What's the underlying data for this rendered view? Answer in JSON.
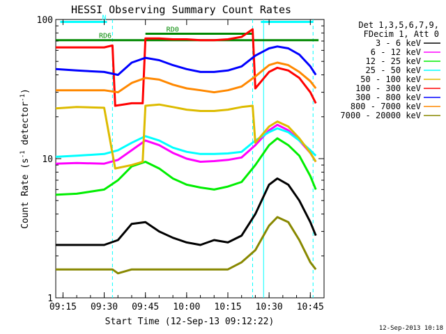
{
  "chart_data": {
    "type": "line",
    "title": "HESSI Observing Summary Count Rates",
    "xlabel": "Start Time (12-Sep-13 09:12:22)",
    "ylabel": "Count Rate (s",
    "ylabel_sup": "-1",
    "ylabel_tail": " detector",
    "ylabel_end": ")",
    "yscale": "log",
    "ylim": [
      1,
      100
    ],
    "xlim": [
      "09:12:22",
      "10:50:00"
    ],
    "y_ticks": [
      {
        "value": 1,
        "label": "1"
      },
      {
        "value": 10,
        "label": "10"
      },
      {
        "value": 100,
        "label": "100"
      }
    ],
    "x_ticks": [
      {
        "t": "09:15",
        "label": "09:15"
      },
      {
        "t": "09:30",
        "label": "09:30"
      },
      {
        "t": "09:45",
        "label": "09:45"
      },
      {
        "t": "10:00",
        "label": "10:00"
      },
      {
        "t": "10:15",
        "label": "10:15"
      },
      {
        "t": "10:30",
        "label": "10:30"
      },
      {
        "t": "10:45",
        "label": "10:45"
      }
    ],
    "legend": {
      "placement": "right",
      "header": [
        "Det 1,3,5,6,7,9,",
        "FDecim 1, Att 0"
      ]
    },
    "series": [
      {
        "name": "3 - 6 keV",
        "color": "#000000",
        "points": [
          [
            "09:12",
            "2.4"
          ],
          [
            "09:20",
            "2.4"
          ],
          [
            "09:30",
            "2.4"
          ],
          [
            "09:35",
            "2.6"
          ],
          [
            "09:40",
            "3.4"
          ],
          [
            "09:45",
            "3.5"
          ],
          [
            "09:50",
            "3.0"
          ],
          [
            "09:55",
            "2.7"
          ],
          [
            "10:00",
            "2.5"
          ],
          [
            "10:05",
            "2.4"
          ],
          [
            "10:10",
            "2.6"
          ],
          [
            "10:15",
            "2.5"
          ],
          [
            "10:20",
            "2.8"
          ],
          [
            "10:25",
            "4.0"
          ],
          [
            "10:30",
            "6.5"
          ],
          [
            "10:33",
            "7.2"
          ],
          [
            "10:37",
            "6.5"
          ],
          [
            "10:41",
            "5.0"
          ],
          [
            "10:45",
            "3.5"
          ],
          [
            "10:47",
            "2.8"
          ]
        ]
      },
      {
        "name": "6 - 12 keV",
        "color": "#ff00ff",
        "points": [
          [
            "09:12",
            "9.2"
          ],
          [
            "09:20",
            "9.3"
          ],
          [
            "09:30",
            "9.2"
          ],
          [
            "09:35",
            "9.8"
          ],
          [
            "09:40",
            "11.5"
          ],
          [
            "09:45",
            "13.5"
          ],
          [
            "09:50",
            "12.5"
          ],
          [
            "09:55",
            "11.0"
          ],
          [
            "10:00",
            "10.0"
          ],
          [
            "10:05",
            "9.5"
          ],
          [
            "10:10",
            "9.6"
          ],
          [
            "10:15",
            "9.8"
          ],
          [
            "10:20",
            "10.2"
          ],
          [
            "10:25",
            "12.5"
          ],
          [
            "10:30",
            "16.0"
          ],
          [
            "10:33",
            "17.5"
          ],
          [
            "10:37",
            "16.0"
          ],
          [
            "10:41",
            "13.5"
          ],
          [
            "10:45",
            "11.0"
          ],
          [
            "10:47",
            "9.5"
          ]
        ]
      },
      {
        "name": "12 - 25 keV",
        "color": "#00ee00",
        "points": [
          [
            "09:12",
            "5.5"
          ],
          [
            "09:20",
            "5.6"
          ],
          [
            "09:30",
            "6.0"
          ],
          [
            "09:35",
            "7.0"
          ],
          [
            "09:40",
            "8.8"
          ],
          [
            "09:45",
            "9.5"
          ],
          [
            "09:50",
            "8.5"
          ],
          [
            "09:55",
            "7.2"
          ],
          [
            "10:00",
            "6.5"
          ],
          [
            "10:05",
            "6.2"
          ],
          [
            "10:10",
            "6.0"
          ],
          [
            "10:15",
            "6.3"
          ],
          [
            "10:20",
            "6.8"
          ],
          [
            "10:25",
            "9.0"
          ],
          [
            "10:30",
            "12.5"
          ],
          [
            "10:33",
            "14.0"
          ],
          [
            "10:37",
            "12.5"
          ],
          [
            "10:41",
            "10.5"
          ],
          [
            "10:45",
            "7.5"
          ],
          [
            "10:47",
            "6.0"
          ]
        ]
      },
      {
        "name": "25 - 50 keV",
        "color": "#00ffff",
        "points": [
          [
            "09:12",
            "10.3"
          ],
          [
            "09:20",
            "10.5"
          ],
          [
            "09:30",
            "10.8"
          ],
          [
            "09:35",
            "11.5"
          ],
          [
            "09:40",
            "13.0"
          ],
          [
            "09:45",
            "14.5"
          ],
          [
            "09:50",
            "13.5"
          ],
          [
            "09:55",
            "12.0"
          ],
          [
            "10:00",
            "11.2"
          ],
          [
            "10:05",
            "10.8"
          ],
          [
            "10:10",
            "10.8"
          ],
          [
            "10:15",
            "10.9"
          ],
          [
            "10:20",
            "11.2"
          ],
          [
            "10:25",
            "13.5"
          ],
          [
            "10:30",
            "15.5"
          ],
          [
            "10:33",
            "16.5"
          ],
          [
            "10:37",
            "15.5"
          ],
          [
            "10:41",
            "13.5"
          ],
          [
            "10:45",
            "11.5"
          ],
          [
            "10:47",
            "10.5"
          ]
        ]
      },
      {
        "name": "50 - 100 keV",
        "color": "#ddbb00",
        "points": [
          [
            "09:12",
            "23.0"
          ],
          [
            "09:20",
            "23.5"
          ],
          [
            "09:30",
            "23.2"
          ],
          [
            "09:34",
            "8.5"
          ],
          [
            "09:40",
            "9.0"
          ],
          [
            "09:44",
            "9.5"
          ],
          [
            "09:45",
            "24.0"
          ],
          [
            "09:50",
            "24.5"
          ],
          [
            "09:55",
            "23.5"
          ],
          [
            "10:00",
            "22.5"
          ],
          [
            "10:05",
            "22.0"
          ],
          [
            "10:10",
            "22.0"
          ],
          [
            "10:15",
            "22.5"
          ],
          [
            "10:20",
            "23.5"
          ],
          [
            "10:24",
            "24.0"
          ],
          [
            "10:25",
            "13.0"
          ],
          [
            "10:30",
            "17.0"
          ],
          [
            "10:33",
            "18.5"
          ],
          [
            "10:37",
            "17.0"
          ],
          [
            "10:41",
            "14.0"
          ],
          [
            "10:45",
            "11.0"
          ],
          [
            "10:47",
            "9.5"
          ]
        ]
      },
      {
        "name": "100 - 300 keV",
        "color": "#ff0000",
        "points": [
          [
            "09:12",
            "63"
          ],
          [
            "09:20",
            "63"
          ],
          [
            "09:30",
            "63"
          ],
          [
            "09:33",
            "65"
          ],
          [
            "09:34",
            "24"
          ],
          [
            "09:40",
            "25"
          ],
          [
            "09:44",
            "25"
          ],
          [
            "09:45",
            "73"
          ],
          [
            "09:50",
            "73"
          ],
          [
            "09:55",
            "72"
          ],
          [
            "10:00",
            "72"
          ],
          [
            "10:05",
            "71"
          ],
          [
            "10:10",
            "71"
          ],
          [
            "10:15",
            "72"
          ],
          [
            "10:20",
            "75"
          ],
          [
            "10:24",
            "85"
          ],
          [
            "10:25",
            "32"
          ],
          [
            "10:30",
            "42"
          ],
          [
            "10:33",
            "45"
          ],
          [
            "10:37",
            "43"
          ],
          [
            "10:41",
            "38"
          ],
          [
            "10:45",
            "30"
          ],
          [
            "10:47",
            "25"
          ]
        ]
      },
      {
        "name": "300 - 800 keV",
        "color": "#0000ff",
        "points": [
          [
            "09:12",
            "44"
          ],
          [
            "09:20",
            "43"
          ],
          [
            "09:30",
            "42"
          ],
          [
            "09:35",
            "40"
          ],
          [
            "09:40",
            "49"
          ],
          [
            "09:45",
            "53"
          ],
          [
            "09:50",
            "51"
          ],
          [
            "09:55",
            "47"
          ],
          [
            "10:00",
            "44"
          ],
          [
            "10:05",
            "42"
          ],
          [
            "10:10",
            "42"
          ],
          [
            "10:15",
            "43"
          ],
          [
            "10:20",
            "46"
          ],
          [
            "10:25",
            "55"
          ],
          [
            "10:30",
            "62"
          ],
          [
            "10:33",
            "64"
          ],
          [
            "10:37",
            "62"
          ],
          [
            "10:41",
            "56"
          ],
          [
            "10:45",
            "46"
          ],
          [
            "10:47",
            "40"
          ]
        ]
      },
      {
        "name": "800 - 7000 keV",
        "color": "#ff8800",
        "points": [
          [
            "09:12",
            "31"
          ],
          [
            "09:20",
            "31"
          ],
          [
            "09:30",
            "31"
          ],
          [
            "09:35",
            "30"
          ],
          [
            "09:40",
            "35"
          ],
          [
            "09:45",
            "38"
          ],
          [
            "09:50",
            "37"
          ],
          [
            "09:55",
            "34"
          ],
          [
            "10:00",
            "32"
          ],
          [
            "10:05",
            "31"
          ],
          [
            "10:10",
            "30"
          ],
          [
            "10:15",
            "31"
          ],
          [
            "10:20",
            "33"
          ],
          [
            "10:25",
            "39"
          ],
          [
            "10:30",
            "47"
          ],
          [
            "10:33",
            "49"
          ],
          [
            "10:37",
            "47"
          ],
          [
            "10:41",
            "42"
          ],
          [
            "10:45",
            "36"
          ],
          [
            "10:47",
            "32"
          ]
        ]
      },
      {
        "name": "7000 - 20000 keV",
        "color": "#888800",
        "points": [
          [
            "09:12",
            "1.6"
          ],
          [
            "09:20",
            "1.6"
          ],
          [
            "09:30",
            "1.6"
          ],
          [
            "09:33",
            "1.6"
          ],
          [
            "09:35",
            "1.5"
          ],
          [
            "09:40",
            "1.6"
          ],
          [
            "09:45",
            "1.6"
          ],
          [
            "09:50",
            "1.6"
          ],
          [
            "10:00",
            "1.6"
          ],
          [
            "10:10",
            "1.6"
          ],
          [
            "10:15",
            "1.6"
          ],
          [
            "10:20",
            "1.8"
          ],
          [
            "10:25",
            "2.2"
          ],
          [
            "10:30",
            "3.3"
          ],
          [
            "10:33",
            "3.8"
          ],
          [
            "10:37",
            "3.5"
          ],
          [
            "10:41",
            "2.6"
          ],
          [
            "10:45",
            "1.8"
          ],
          [
            "10:47",
            "1.6"
          ]
        ]
      }
    ],
    "annotations": {
      "flag_bars": [
        {
          "label": "N",
          "start": "09:14",
          "end": "09:31",
          "level": 96,
          "color": "#00ffff"
        },
        {
          "label": "",
          "start": "10:27",
          "end": "10:46",
          "level": 96,
          "color": "#00ffff"
        },
        {
          "label": "RD0",
          "start": "09:45",
          "end": "10:24",
          "level": 79,
          "color": "#008800"
        },
        {
          "label": "RD6",
          "start": "09:12:22",
          "end": "10:48",
          "level": 71,
          "color": "#008800"
        }
      ],
      "vlines": [
        {
          "t": "09:33",
          "color": "#00ffff",
          "dashed": true
        },
        {
          "t": "10:24",
          "color": "#00ffff",
          "dashed": true
        },
        {
          "t": "10:46",
          "color": "#00ffff",
          "dashed": true
        },
        {
          "t": "10:28",
          "color": "#00ffff",
          "dashed": false
        }
      ]
    },
    "footer": "12-Sep-2013 10:18"
  }
}
